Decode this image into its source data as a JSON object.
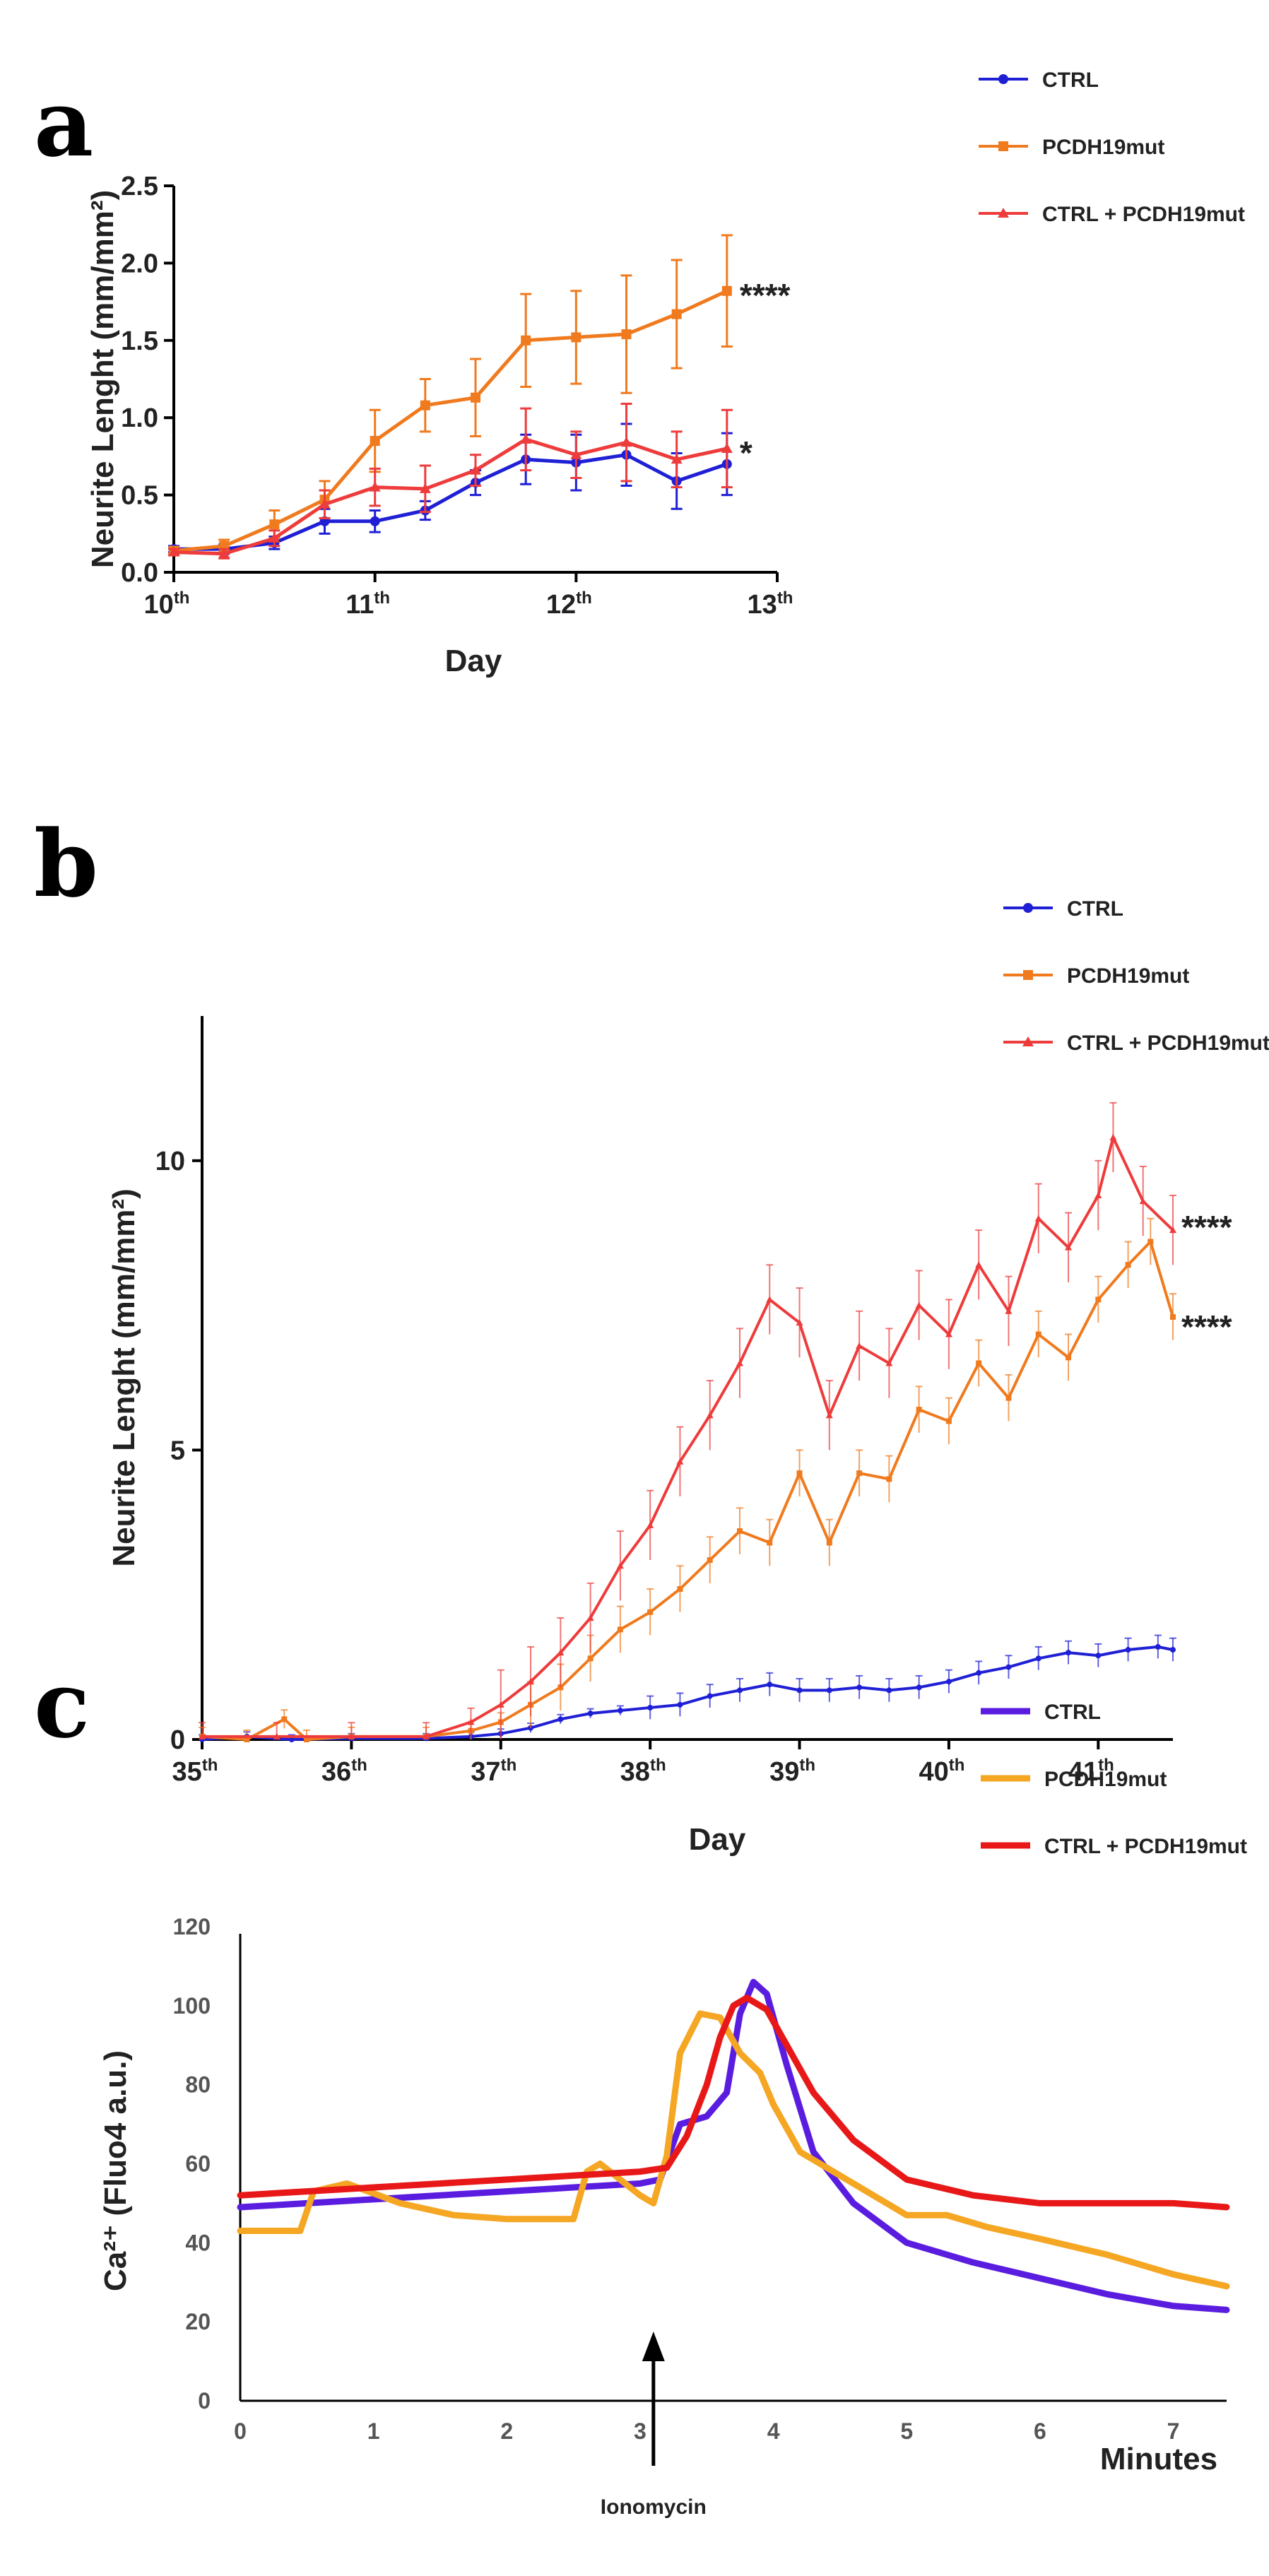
{
  "chart_data": [
    {
      "panel": "a",
      "type": "line",
      "xlabel": "Day",
      "ylabel": "Neurite Lenght (mm/mm²)",
      "xlim": [
        10,
        13
      ],
      "ylim": [
        0,
        2.5
      ],
      "x_ticks": [
        {
          "v": 10,
          "label": "10",
          "sup": "th"
        },
        {
          "v": 11,
          "label": "11",
          "sup": "th"
        },
        {
          "v": 12,
          "label": "12",
          "sup": "th"
        },
        {
          "v": 13,
          "label": "13",
          "sup": "th"
        }
      ],
      "y_ticks": [
        {
          "v": 0,
          "label": "0.0"
        },
        {
          "v": 0.5,
          "label": "0.5"
        },
        {
          "v": 1.0,
          "label": "1.0"
        },
        {
          "v": 1.5,
          "label": "1.5"
        },
        {
          "v": 2.0,
          "label": "2.0"
        },
        {
          "v": 2.5,
          "label": "2.5"
        }
      ],
      "x": [
        10,
        10.25,
        10.5,
        10.75,
        11,
        11.25,
        11.5,
        11.75,
        12,
        12.25,
        12.5,
        12.75
      ],
      "series": [
        {
          "name": "CTRL",
          "color": "#1f1fd6",
          "marker": "circle",
          "values": [
            0.15,
            0.15,
            0.19,
            0.33,
            0.33,
            0.4,
            0.58,
            0.73,
            0.71,
            0.76,
            0.59,
            0.7
          ],
          "errors": [
            0.02,
            0.03,
            0.04,
            0.08,
            0.07,
            0.06,
            0.08,
            0.16,
            0.18,
            0.2,
            0.18,
            0.2
          ]
        },
        {
          "name": "PCDH19mut",
          "color": "#f07a1e",
          "marker": "square",
          "values": [
            0.14,
            0.17,
            0.31,
            0.47,
            0.85,
            1.08,
            1.13,
            1.5,
            1.52,
            1.54,
            1.67,
            1.82
          ],
          "errors": [
            0.02,
            0.04,
            0.09,
            0.12,
            0.2,
            0.17,
            0.25,
            0.3,
            0.3,
            0.38,
            0.35,
            0.36
          ]
        },
        {
          "name": "CTRL + PCDH19mut",
          "color": "#ee3b3b",
          "marker": "triangle",
          "values": [
            0.13,
            0.12,
            0.22,
            0.44,
            0.55,
            0.54,
            0.66,
            0.86,
            0.76,
            0.84,
            0.73,
            0.8
          ],
          "errors": [
            0.02,
            0.03,
            0.05,
            0.09,
            0.12,
            0.15,
            0.1,
            0.2,
            0.15,
            0.25,
            0.18,
            0.25
          ]
        }
      ],
      "annotations": [
        {
          "text": "****",
          "series": 1
        },
        {
          "text": "*",
          "series": 2
        }
      ]
    },
    {
      "panel": "b",
      "type": "line",
      "xlabel": "Day",
      "ylabel": "Neurite Lenght (mm/mm²)",
      "xlim": [
        35,
        41.5
      ],
      "ylim": [
        0,
        12.5
      ],
      "x_ticks": [
        {
          "v": 35,
          "label": "35",
          "sup": "th"
        },
        {
          "v": 36,
          "label": "36",
          "sup": "th"
        },
        {
          "v": 37,
          "label": "37",
          "sup": "th"
        },
        {
          "v": 38,
          "label": "38",
          "sup": "th"
        },
        {
          "v": 39,
          "label": "39",
          "sup": "th"
        },
        {
          "v": 40,
          "label": "40",
          "sup": "th"
        },
        {
          "v": 41,
          "label": "41",
          "sup": "th"
        }
      ],
      "y_ticks": [
        {
          "v": 0,
          "label": "0"
        },
        {
          "v": 5,
          "label": "5"
        },
        {
          "v": 10,
          "label": "10"
        }
      ],
      "series": [
        {
          "name": "CTRL",
          "color": "#1f1fd6",
          "marker": "circle",
          "points": [
            [
              35.0,
              0.0
            ],
            [
              35.3,
              0.05
            ],
            [
              35.6,
              0.0
            ],
            [
              36.0,
              0.02
            ],
            [
              36.5,
              0.02
            ],
            [
              36.8,
              0.05
            ],
            [
              37.0,
              0.1
            ],
            [
              37.2,
              0.2
            ],
            [
              37.4,
              0.35
            ],
            [
              37.6,
              0.45
            ],
            [
              37.8,
              0.5
            ],
            [
              38.0,
              0.55
            ],
            [
              38.2,
              0.6
            ],
            [
              38.4,
              0.75
            ],
            [
              38.6,
              0.85
            ],
            [
              38.8,
              0.95
            ],
            [
              39.0,
              0.85
            ],
            [
              39.2,
              0.85
            ],
            [
              39.4,
              0.9
            ],
            [
              39.6,
              0.85
            ],
            [
              39.8,
              0.9
            ],
            [
              40.0,
              1.0
            ],
            [
              40.2,
              1.15
            ],
            [
              40.4,
              1.25
            ],
            [
              40.6,
              1.4
            ],
            [
              40.8,
              1.5
            ],
            [
              41.0,
              1.45
            ],
            [
              41.2,
              1.55
            ],
            [
              41.4,
              1.6
            ],
            [
              41.5,
              1.55
            ]
          ],
          "err": 0.2
        },
        {
          "name": "PCDH19mut",
          "color": "#f07a1e",
          "marker": "square",
          "points": [
            [
              35.0,
              0.05
            ],
            [
              35.3,
              0.0
            ],
            [
              35.55,
              0.35
            ],
            [
              35.7,
              0.0
            ],
            [
              36.0,
              0.05
            ],
            [
              36.5,
              0.05
            ],
            [
              36.8,
              0.15
            ],
            [
              37.0,
              0.3
            ],
            [
              37.2,
              0.6
            ],
            [
              37.4,
              0.9
            ],
            [
              37.6,
              1.4
            ],
            [
              37.8,
              1.9
            ],
            [
              38.0,
              2.2
            ],
            [
              38.2,
              2.6
            ],
            [
              38.4,
              3.1
            ],
            [
              38.6,
              3.6
            ],
            [
              38.8,
              3.4
            ],
            [
              39.0,
              4.6
            ],
            [
              39.2,
              3.4
            ],
            [
              39.4,
              4.6
            ],
            [
              39.6,
              4.5
            ],
            [
              39.8,
              5.7
            ],
            [
              40.0,
              5.5
            ],
            [
              40.2,
              6.5
            ],
            [
              40.4,
              5.9
            ],
            [
              40.6,
              7.0
            ],
            [
              40.8,
              6.6
            ],
            [
              41.0,
              7.6
            ],
            [
              41.2,
              8.2
            ],
            [
              41.35,
              8.6
            ],
            [
              41.5,
              7.3
            ]
          ],
          "err": 0.4
        },
        {
          "name": "CTRL + PCDH19mut",
          "color": "#ee3b3b",
          "marker": "triangle",
          "points": [
            [
              35.0,
              0.05
            ],
            [
              35.5,
              0.05
            ],
            [
              36.0,
              0.05
            ],
            [
              36.5,
              0.05
            ],
            [
              36.8,
              0.3
            ],
            [
              37.0,
              0.6
            ],
            [
              37.2,
              1.0
            ],
            [
              37.4,
              1.5
            ],
            [
              37.6,
              2.1
            ],
            [
              37.8,
              3.0
            ],
            [
              38.0,
              3.7
            ],
            [
              38.2,
              4.8
            ],
            [
              38.4,
              5.6
            ],
            [
              38.6,
              6.5
            ],
            [
              38.8,
              7.6
            ],
            [
              39.0,
              7.2
            ],
            [
              39.2,
              5.6
            ],
            [
              39.4,
              6.8
            ],
            [
              39.6,
              6.5
            ],
            [
              39.8,
              7.5
            ],
            [
              40.0,
              7.0
            ],
            [
              40.2,
              8.2
            ],
            [
              40.4,
              7.4
            ],
            [
              40.6,
              9.0
            ],
            [
              40.8,
              8.5
            ],
            [
              41.0,
              9.4
            ],
            [
              41.1,
              10.4
            ],
            [
              41.3,
              9.3
            ],
            [
              41.5,
              8.8
            ]
          ],
          "err": 0.6
        }
      ],
      "annotations": [
        {
          "text": "****",
          "series": 2
        },
        {
          "text": "****",
          "series": 1
        }
      ]
    },
    {
      "panel": "c",
      "type": "line",
      "xlabel": "Minutes",
      "ylabel": "Ca²⁺ (Fluo4 a.u.)",
      "xlim": [
        0,
        7.4
      ],
      "ylim": [
        0,
        120
      ],
      "x_ticks": [
        {
          "v": 0,
          "label": "0"
        },
        {
          "v": 1,
          "label": "1"
        },
        {
          "v": 2,
          "label": "2"
        },
        {
          "v": 3,
          "label": "3"
        },
        {
          "v": 4,
          "label": "4"
        },
        {
          "v": 5,
          "label": "5"
        },
        {
          "v": 6,
          "label": "6"
        },
        {
          "v": 7,
          "label": "7"
        }
      ],
      "y_ticks": [
        {
          "v": 0,
          "label": "0"
        },
        {
          "v": 20,
          "label": "20"
        },
        {
          "v": 40,
          "label": "40"
        },
        {
          "v": 60,
          "label": "60"
        },
        {
          "v": 80,
          "label": "80"
        },
        {
          "v": 100,
          "label": "100"
        },
        {
          "v": 120,
          "label": "120"
        }
      ],
      "series": [
        {
          "name": "CTRL",
          "color": "#5a1de0",
          "points": [
            [
              0,
              49
            ],
            [
              0.5,
              50
            ],
            [
              1,
              51
            ],
            [
              1.5,
              52
            ],
            [
              2,
              53
            ],
            [
              2.5,
              54
            ],
            [
              3.0,
              55
            ],
            [
              3.15,
              56
            ],
            [
              3.3,
              70
            ],
            [
              3.5,
              72
            ],
            [
              3.65,
              78
            ],
            [
              3.75,
              98
            ],
            [
              3.85,
              106
            ],
            [
              3.95,
              103
            ],
            [
              4.1,
              85
            ],
            [
              4.3,
              63
            ],
            [
              4.6,
              50
            ],
            [
              5.0,
              40
            ],
            [
              5.5,
              35
            ],
            [
              6.0,
              31
            ],
            [
              6.5,
              27
            ],
            [
              7.0,
              24
            ],
            [
              7.4,
              23
            ]
          ]
        },
        {
          "name": "PCDH19mut",
          "color": "#f5a623",
          "points": [
            [
              0,
              43
            ],
            [
              0.45,
              43
            ],
            [
              0.55,
              53
            ],
            [
              0.8,
              55
            ],
            [
              1.2,
              50
            ],
            [
              1.6,
              47
            ],
            [
              2.0,
              46
            ],
            [
              2.5,
              46
            ],
            [
              2.6,
              58
            ],
            [
              2.7,
              60
            ],
            [
              2.85,
              56
            ],
            [
              3.0,
              52
            ],
            [
              3.1,
              50
            ],
            [
              3.2,
              62
            ],
            [
              3.3,
              88
            ],
            [
              3.45,
              98
            ],
            [
              3.6,
              97
            ],
            [
              3.75,
              88
            ],
            [
              3.9,
              83
            ],
            [
              4.0,
              75
            ],
            [
              4.2,
              63
            ],
            [
              4.5,
              57
            ],
            [
              4.8,
              51
            ],
            [
              5.0,
              47
            ],
            [
              5.3,
              47
            ],
            [
              5.6,
              44
            ],
            [
              6.0,
              41
            ],
            [
              6.5,
              37
            ],
            [
              7.0,
              32
            ],
            [
              7.4,
              29
            ]
          ]
        },
        {
          "name": "CTRL + PCDH19mut",
          "color": "#e81818",
          "points": [
            [
              0,
              52
            ],
            [
              0.5,
              53
            ],
            [
              1,
              54
            ],
            [
              1.5,
              55
            ],
            [
              2,
              56
            ],
            [
              2.5,
              57
            ],
            [
              3.0,
              58
            ],
            [
              3.2,
              59
            ],
            [
              3.35,
              67
            ],
            [
              3.5,
              80
            ],
            [
              3.6,
              92
            ],
            [
              3.7,
              100
            ],
            [
              3.8,
              102
            ],
            [
              3.95,
              99
            ],
            [
              4.1,
              90
            ],
            [
              4.3,
              78
            ],
            [
              4.6,
              66
            ],
            [
              5.0,
              56
            ],
            [
              5.5,
              52
            ],
            [
              6.0,
              50
            ],
            [
              6.5,
              50
            ],
            [
              7.0,
              50
            ],
            [
              7.4,
              49
            ]
          ]
        }
      ],
      "event": {
        "label": "Ionomycin",
        "x": 3.1
      }
    }
  ],
  "legend": {
    "entries": [
      {
        "name": "CTRL",
        "color": "#1f1fd6"
      },
      {
        "name": "PCDH19mut",
        "color": "#f07a1e"
      },
      {
        "name": "CTRL + PCDH19mut",
        "color": "#ee3b3b"
      }
    ]
  }
}
